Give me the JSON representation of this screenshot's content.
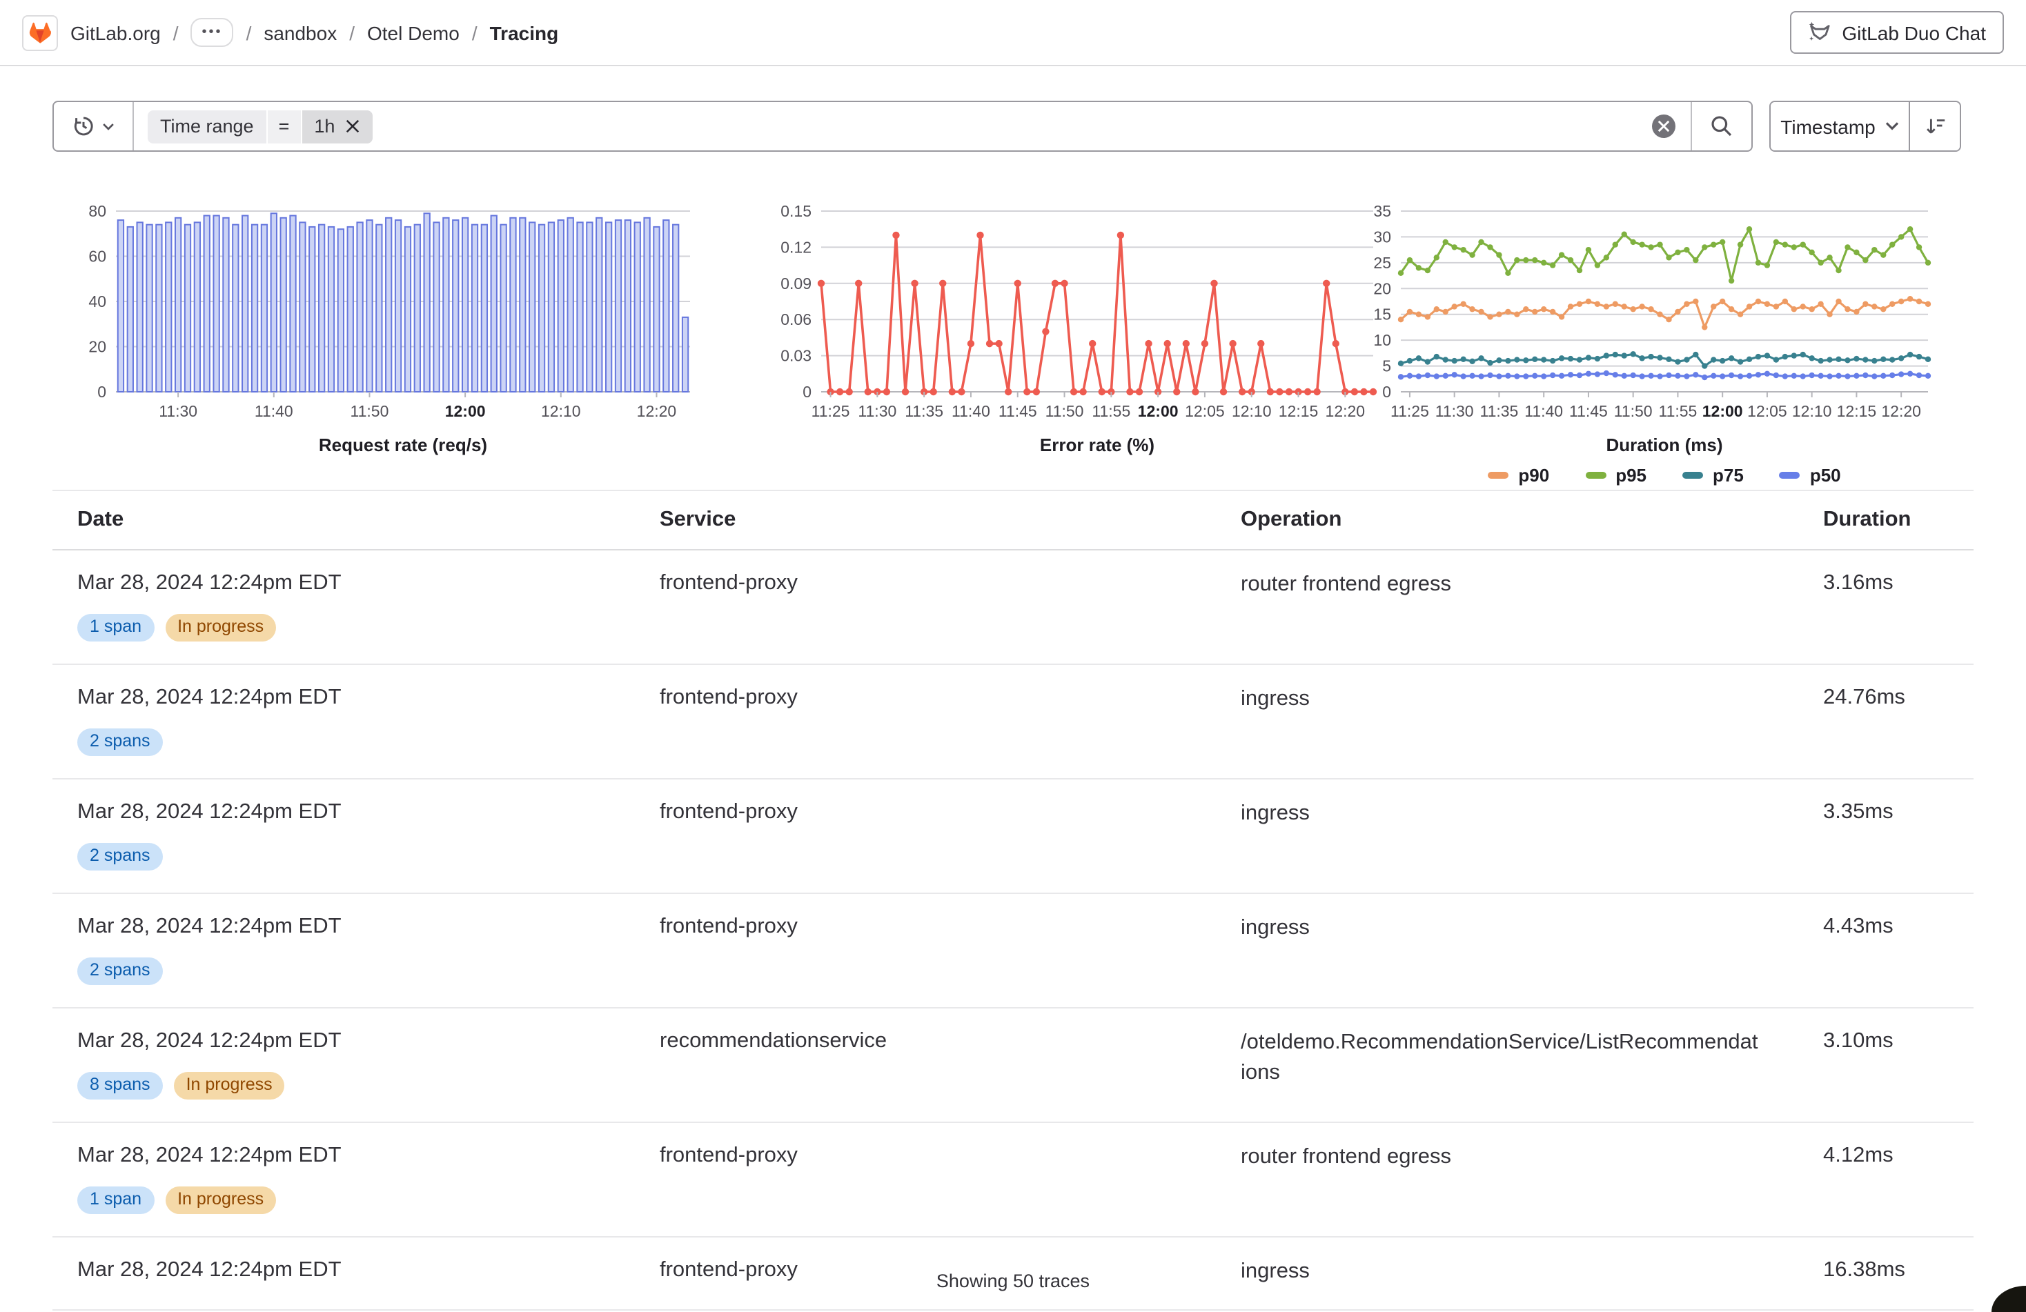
{
  "header": {
    "breadcrumb": {
      "root": "GitLab.org",
      "ellipsis": "•••",
      "items": [
        "sandbox",
        "Otel Demo"
      ],
      "current": "Tracing"
    },
    "duo_chat_label": "GitLab Duo Chat"
  },
  "filter_bar": {
    "token": {
      "key": "Time range",
      "operator": "=",
      "value": "1h"
    },
    "sort_label": "Timestamp"
  },
  "chart_data": [
    {
      "id": "request-rate",
      "type": "bar",
      "title": "Request rate (req/s)",
      "ylim": [
        0,
        80
      ],
      "y_ticks": [
        0,
        20,
        40,
        60,
        80
      ],
      "x_tick_labels": [
        "11:30",
        "11:40",
        "11:50",
        "12:00",
        "12:10",
        "12:20"
      ],
      "x_tick_indices": [
        6,
        16,
        26,
        36,
        46,
        56
      ],
      "bold_tick": "12:00",
      "color": "#ccd4f5",
      "border": "#6677de",
      "values": [
        76,
        73,
        75,
        74,
        74,
        75,
        77,
        74,
        75,
        78,
        78,
        77,
        74,
        78,
        74,
        74,
        79,
        77,
        78,
        75,
        73,
        74,
        73,
        72,
        73,
        75,
        76,
        74,
        77,
        76,
        73,
        74,
        79,
        75,
        77,
        76,
        77,
        74,
        74,
        78,
        74,
        77,
        77,
        75,
        74,
        75,
        76,
        77,
        75,
        75,
        77,
        75,
        76,
        76,
        75,
        77,
        73,
        76,
        74,
        33
      ]
    },
    {
      "id": "error-rate",
      "type": "line",
      "title": "Error rate (%)",
      "ylim": [
        0,
        0.15
      ],
      "y_ticks": [
        0,
        0.03,
        0.06,
        0.09,
        0.12,
        0.15
      ],
      "x_tick_labels": [
        "11:25",
        "11:30",
        "11:35",
        "11:40",
        "11:45",
        "11:50",
        "11:55",
        "12:00",
        "12:05",
        "12:10",
        "12:15",
        "12:20"
      ],
      "x_tick_indices": [
        1,
        6,
        11,
        16,
        21,
        26,
        31,
        36,
        41,
        46,
        51,
        56
      ],
      "bold_tick": "12:00",
      "color": "#ee5b50",
      "values": [
        0.09,
        0,
        0,
        0,
        0.09,
        0,
        0,
        0,
        0.13,
        0,
        0.09,
        0,
        0,
        0.09,
        0,
        0,
        0.04,
        0.13,
        0.04,
        0.04,
        0,
        0.09,
        0,
        0,
        0.05,
        0.09,
        0.09,
        0,
        0,
        0.04,
        0,
        0,
        0.13,
        0,
        0,
        0.04,
        0,
        0.04,
        0,
        0.04,
        0,
        0.04,
        0.09,
        0,
        0.04,
        0,
        0,
        0.04,
        0,
        0,
        0,
        0,
        0,
        0,
        0.09,
        0.04,
        0,
        0,
        0,
        0
      ]
    },
    {
      "id": "duration",
      "type": "multi-line",
      "title": "Duration (ms)",
      "ylim": [
        0,
        35
      ],
      "y_ticks": [
        0,
        5,
        10,
        15,
        20,
        25,
        30,
        35
      ],
      "x_tick_labels": [
        "11:25",
        "11:30",
        "11:35",
        "11:40",
        "11:45",
        "11:50",
        "11:55",
        "12:00",
        "12:05",
        "12:10",
        "12:15",
        "12:20"
      ],
      "x_tick_indices": [
        1,
        6,
        11,
        16,
        21,
        26,
        31,
        36,
        41,
        46,
        51,
        56
      ],
      "bold_tick": "12:00",
      "legend_order": [
        "p90",
        "p95",
        "p75",
        "p50"
      ],
      "series": [
        {
          "name": "p90",
          "color": "#ee9b63",
          "values": [
            14,
            15.5,
            15,
            14.5,
            16,
            15.5,
            16.5,
            17,
            16,
            15.5,
            14.5,
            15,
            15.5,
            15,
            16,
            15.5,
            16,
            15.5,
            14.5,
            16.5,
            17,
            17.5,
            17,
            16.5,
            17,
            16.5,
            16,
            16.5,
            16,
            15,
            14,
            15.5,
            17,
            17.5,
            12.5,
            16.5,
            17.5,
            16,
            15,
            16.5,
            17.5,
            17,
            16.5,
            17.5,
            16,
            16.5,
            16,
            17,
            15,
            17.5,
            16,
            15.5,
            17,
            16.5,
            16,
            17,
            17.5,
            18,
            17.5,
            17
          ]
        },
        {
          "name": "p95",
          "color": "#7fb13f",
          "values": [
            23,
            25.5,
            24,
            23.5,
            26,
            29,
            28,
            27.5,
            26.5,
            29,
            28,
            26.5,
            23,
            25.5,
            25.5,
            25.5,
            25,
            24.5,
            26.5,
            25.5,
            23.5,
            27.5,
            24.5,
            26,
            28.5,
            30.5,
            29,
            28.5,
            28,
            28.5,
            26,
            27,
            27.5,
            25.5,
            28,
            28.5,
            29,
            21.5,
            28.5,
            31.5,
            25,
            24.5,
            29,
            28.5,
            28,
            28.5,
            27,
            25,
            26,
            23.5,
            28,
            27,
            25.5,
            27.5,
            26.5,
            28.5,
            30,
            31.5,
            28,
            25
          ]
        },
        {
          "name": "p75",
          "color": "#38818f",
          "values": [
            5.5,
            6,
            6.5,
            5.8,
            6.8,
            6.2,
            6,
            6.3,
            5.9,
            6.5,
            5.6,
            6.1,
            6,
            6.2,
            6.1,
            6.3,
            6.2,
            6,
            6.5,
            6.4,
            6.2,
            6.6,
            6.4,
            7,
            7.2,
            7,
            7.3,
            6.5,
            6.8,
            6.6,
            6.3,
            5.8,
            6.2,
            7.2,
            5,
            6.2,
            6,
            6.5,
            5.8,
            6.3,
            6.8,
            7,
            6.2,
            6.8,
            7,
            7.2,
            6.5,
            6,
            6.2,
            6.3,
            6.1,
            6.4,
            6.2,
            6,
            6.3,
            6.2,
            6.5,
            7.2,
            6.8,
            6.3
          ]
        },
        {
          "name": "p50",
          "color": "#667ee8",
          "values": [
            2.9,
            3.1,
            3,
            3.2,
            3,
            3.1,
            3.3,
            3,
            3.1,
            3,
            3.2,
            3,
            3.1,
            3,
            3,
            3.1,
            3,
            3.2,
            3.1,
            3.3,
            3.2,
            3.5,
            3.4,
            3.6,
            3.3,
            3.1,
            3.2,
            3,
            3.1,
            3,
            3.2,
            3.1,
            3,
            3.3,
            2.8,
            3.1,
            3,
            3.2,
            3,
            3.1,
            3.3,
            3.5,
            3.2,
            3,
            3.1,
            3,
            3.2,
            3.1,
            3,
            3.1,
            3,
            3.1,
            3.2,
            3,
            3.1,
            3.2,
            3.4,
            3.5,
            3.2,
            3.1
          ]
        }
      ]
    }
  ],
  "table": {
    "columns": [
      "Date",
      "Service",
      "Operation",
      "Duration"
    ],
    "rows": [
      {
        "date": "Mar 28, 2024 12:24pm EDT",
        "badges": [
          {
            "label": "1 span",
            "type": "info"
          },
          {
            "label": "In progress",
            "type": "warning"
          }
        ],
        "service": "frontend-proxy",
        "operation": "router frontend egress",
        "duration": "3.16ms"
      },
      {
        "date": "Mar 28, 2024 12:24pm EDT",
        "badges": [
          {
            "label": "2 spans",
            "type": "info"
          }
        ],
        "service": "frontend-proxy",
        "operation": "ingress",
        "duration": "24.76ms"
      },
      {
        "date": "Mar 28, 2024 12:24pm EDT",
        "badges": [
          {
            "label": "2 spans",
            "type": "info"
          }
        ],
        "service": "frontend-proxy",
        "operation": "ingress",
        "duration": "3.35ms"
      },
      {
        "date": "Mar 28, 2024 12:24pm EDT",
        "badges": [
          {
            "label": "2 spans",
            "type": "info"
          }
        ],
        "service": "frontend-proxy",
        "operation": "ingress",
        "duration": "4.43ms"
      },
      {
        "date": "Mar 28, 2024 12:24pm EDT",
        "badges": [
          {
            "label": "8 spans",
            "type": "info"
          },
          {
            "label": "In progress",
            "type": "warning"
          }
        ],
        "service": "recommendationservice",
        "operation": "/oteldemo.RecommendationService/ListRecommendations",
        "duration": "3.10ms"
      },
      {
        "date": "Mar 28, 2024 12:24pm EDT",
        "badges": [
          {
            "label": "1 span",
            "type": "info"
          },
          {
            "label": "In progress",
            "type": "warning"
          }
        ],
        "service": "frontend-proxy",
        "operation": "router frontend egress",
        "duration": "4.12ms"
      },
      {
        "date": "Mar 28, 2024 12:24pm EDT",
        "badges": [],
        "service": "frontend-proxy",
        "operation": "ingress",
        "duration": "16.38ms"
      }
    ],
    "footer": "Showing 50 traces"
  }
}
